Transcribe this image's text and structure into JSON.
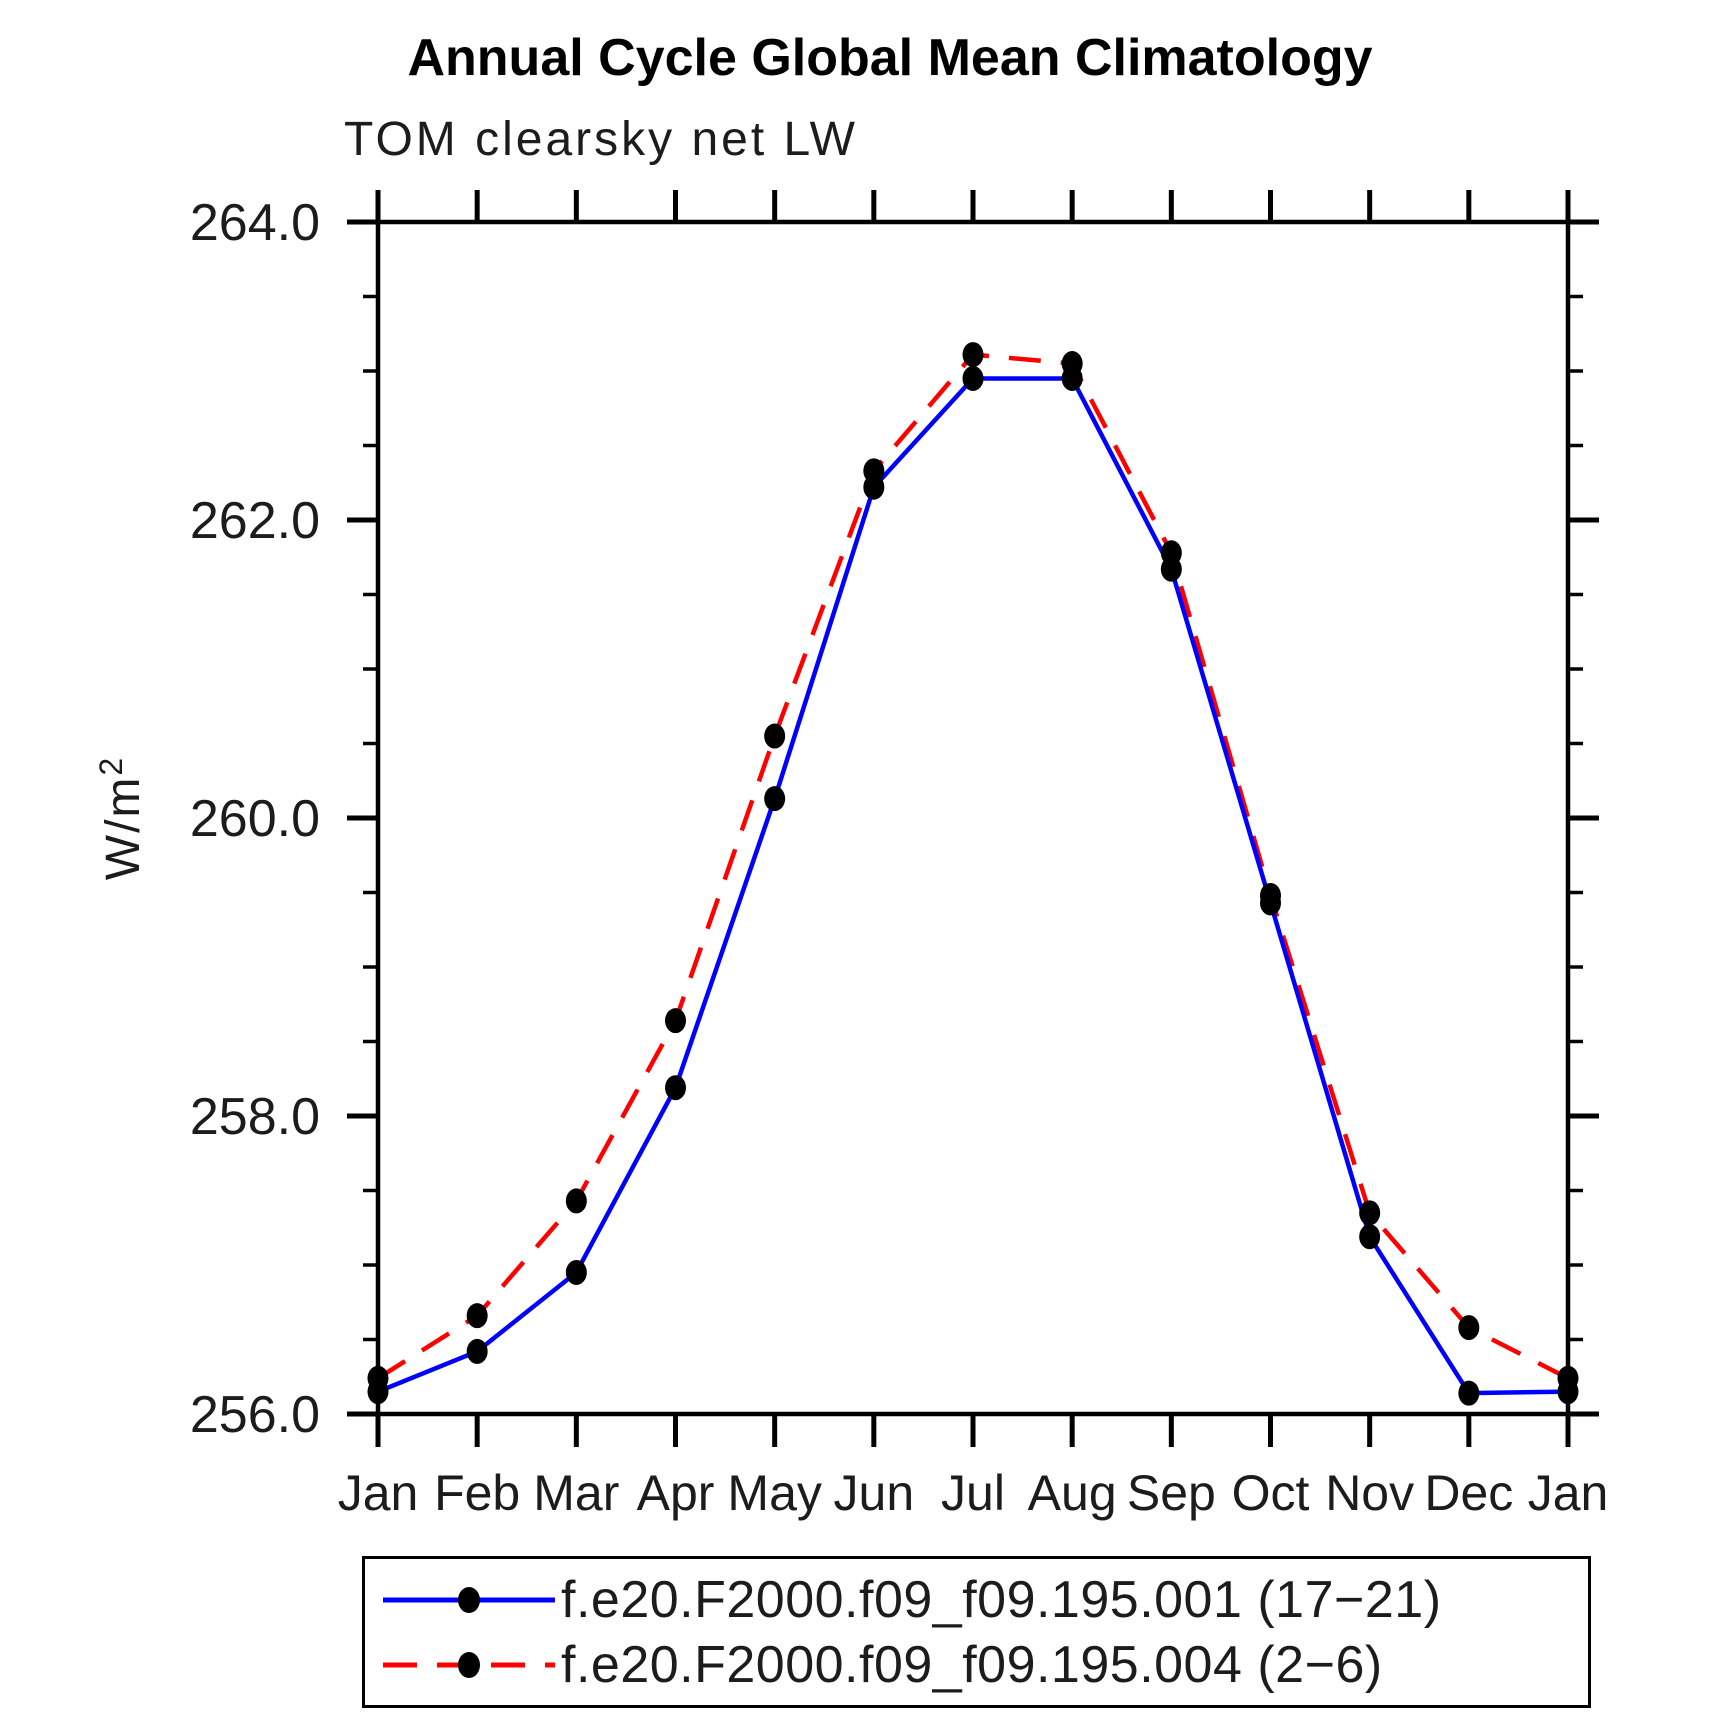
{
  "title": "Annual Cycle Global Mean Climatology",
  "subtitle": "TOM clearsky net LW",
  "ylabel": "W/m²",
  "chart_data": {
    "type": "line",
    "categories": [
      "Jan",
      "Feb",
      "Mar",
      "Apr",
      "May",
      "Jun",
      "Jul",
      "Aug",
      "Sep",
      "Oct",
      "Nov",
      "Dec",
      "Jan"
    ],
    "xlabel": "",
    "ylabel": "W/m²",
    "ylim": [
      256.0,
      264.0
    ],
    "ytick_labels": [
      "256.0",
      "258.0",
      "260.0",
      "262.0",
      "264.0"
    ],
    "ytick_minor_step": 0.5,
    "grid": false,
    "legend_position": "bottom",
    "marker": {
      "shape": "filled-dot",
      "color": "#000000"
    },
    "axis_color": "#000000",
    "series": [
      {
        "name": "f.e20.F2000.f09_f09.195.001 (17−21)",
        "color": "#0000ff",
        "line_style": "solid",
        "values": [
          256.15,
          256.42,
          256.95,
          258.19,
          260.13,
          262.22,
          262.95,
          262.95,
          261.67,
          259.43,
          257.19,
          256.14,
          256.15
        ]
      },
      {
        "name": "f.e20.F2000.f09_f09.195.004 (2−6)",
        "color": "#ff0000",
        "line_style": "dashed",
        "values": [
          256.24,
          256.66,
          257.43,
          258.64,
          260.55,
          262.33,
          263.11,
          263.05,
          261.78,
          259.48,
          257.35,
          256.58,
          256.24
        ]
      }
    ]
  }
}
